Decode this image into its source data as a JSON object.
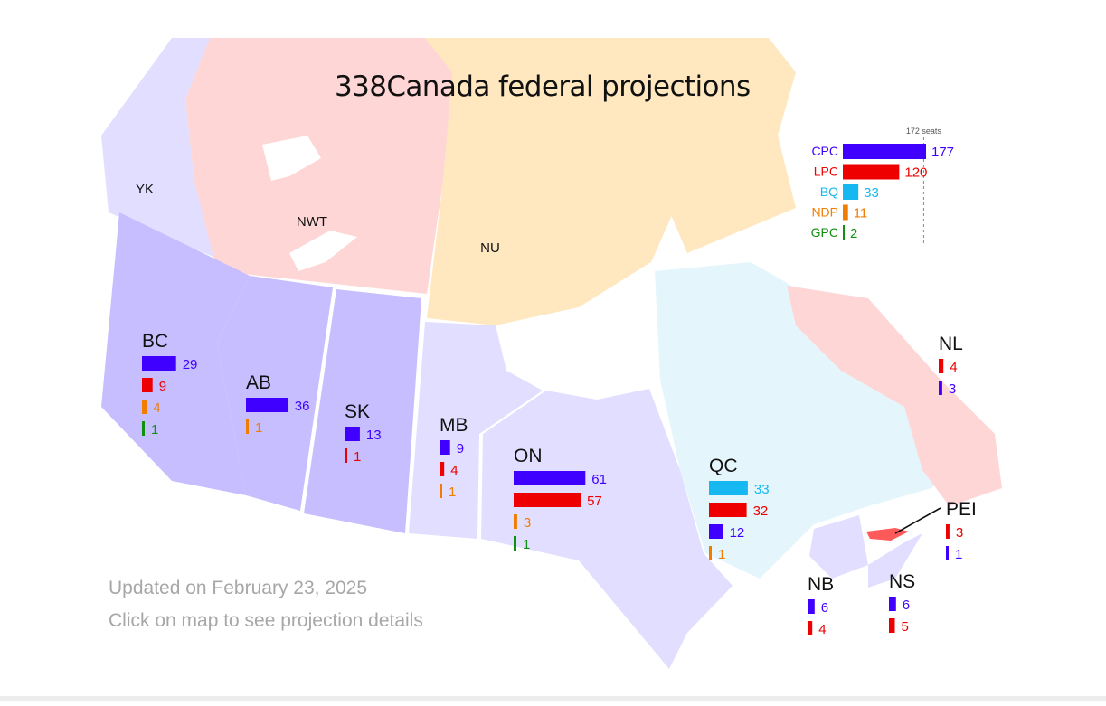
{
  "title": "338Canada federal projections",
  "footer": {
    "updated": "Updated on February 23, 2025",
    "hint": "Click on map to see projection details"
  },
  "colors": {
    "CPC": "#3f00ff",
    "LPC": "#ee0000",
    "BQ": "#15b8f0",
    "NDP": "#f07d00",
    "GPC": "#109010",
    "conservative_region": "#c6beff",
    "light_region": "#e2deff",
    "liberal_region": "#ffd6d6",
    "nunavut_region": "#ffe8c0",
    "bloc_region": "#e4f6fc",
    "pei_highlight": "#ff5a5a"
  },
  "territories": [
    {
      "label": "YK"
    },
    {
      "label": "NWT"
    },
    {
      "label": "NU"
    }
  ],
  "national": {
    "threshold_label": "172 seats",
    "majority": 172,
    "max": 177,
    "parties": [
      {
        "party": "CPC",
        "seats": 177
      },
      {
        "party": "LPC",
        "seats": 120
      },
      {
        "party": "BQ",
        "seats": 33
      },
      {
        "party": "NDP",
        "seats": 11
      },
      {
        "party": "GPC",
        "seats": 2
      }
    ]
  },
  "provinces": [
    {
      "label": "BC",
      "results": [
        {
          "party": "CPC",
          "seats": 29
        },
        {
          "party": "LPC",
          "seats": 9
        },
        {
          "party": "NDP",
          "seats": 4
        },
        {
          "party": "GPC",
          "seats": 1
        }
      ]
    },
    {
      "label": "AB",
      "results": [
        {
          "party": "CPC",
          "seats": 36
        },
        {
          "party": "NDP",
          "seats": 1
        }
      ]
    },
    {
      "label": "SK",
      "results": [
        {
          "party": "CPC",
          "seats": 13
        },
        {
          "party": "LPC",
          "seats": 1
        }
      ]
    },
    {
      "label": "MB",
      "results": [
        {
          "party": "CPC",
          "seats": 9
        },
        {
          "party": "LPC",
          "seats": 4
        },
        {
          "party": "NDP",
          "seats": 1
        }
      ]
    },
    {
      "label": "ON",
      "results": [
        {
          "party": "CPC",
          "seats": 61
        },
        {
          "party": "LPC",
          "seats": 57
        },
        {
          "party": "NDP",
          "seats": 3
        },
        {
          "party": "GPC",
          "seats": 1
        }
      ]
    },
    {
      "label": "QC",
      "results": [
        {
          "party": "BQ",
          "seats": 33
        },
        {
          "party": "LPC",
          "seats": 32
        },
        {
          "party": "CPC",
          "seats": 12
        },
        {
          "party": "NDP",
          "seats": 1
        }
      ]
    },
    {
      "label": "NL",
      "results": [
        {
          "party": "LPC",
          "seats": 4
        },
        {
          "party": "CPC",
          "seats": 3
        }
      ]
    },
    {
      "label": "PEI",
      "results": [
        {
          "party": "LPC",
          "seats": 3
        },
        {
          "party": "CPC",
          "seats": 1
        }
      ]
    },
    {
      "label": "NB",
      "results": [
        {
          "party": "CPC",
          "seats": 6
        },
        {
          "party": "LPC",
          "seats": 4
        }
      ]
    },
    {
      "label": "NS",
      "results": [
        {
          "party": "CPC",
          "seats": 6
        },
        {
          "party": "LPC",
          "seats": 5
        }
      ]
    }
  ]
}
